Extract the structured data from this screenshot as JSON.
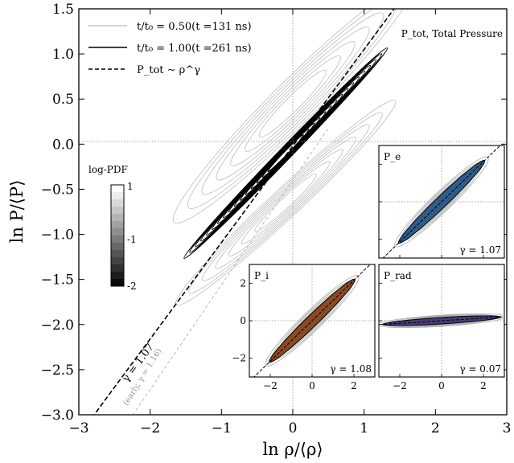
{
  "chart_data": {
    "type": "heatmap",
    "title": "",
    "xlabel": "ln ρ/⟨ρ⟩",
    "ylabel": "ln P/⟨P⟩",
    "xlim": [
      -3,
      3
    ],
    "ylim": [
      -3,
      1.5
    ],
    "xticks": [
      "−3",
      "−2",
      "−1",
      "0",
      "1",
      "2",
      "3"
    ],
    "yticks": [
      "1.5",
      "1.0",
      "0.5",
      "0.0",
      "−0.5",
      "−1.0",
      "−1.5",
      "−2.0",
      "−2.5",
      "−3.0"
    ],
    "panel_label": "P_tot, Total Pressure",
    "legend": [
      {
        "label": "t/t₀ = 0.50(t =131 ns)",
        "style": "solid",
        "color": "#bbbbbb"
      },
      {
        "label": "t/t₀ = 1.00(t =261 ns)",
        "style": "solid",
        "color": "#000000"
      },
      {
        "label": "P_tot ∼ ρ^γ",
        "style": "dashed",
        "color": "#000000"
      }
    ],
    "fit_label": "γ = 1.07",
    "fit_gamma": 1.07,
    "early_label": "(early, γ = 1.16)",
    "early_gamma": 1.16,
    "colorbar": {
      "title": "log-PDF",
      "ticks": [
        "1",
        "-1",
        "-2"
      ],
      "range": [
        -2,
        1
      ]
    },
    "insets": [
      {
        "label": "P_e",
        "gamma_label": "γ = 1.07",
        "gamma": 1.07,
        "color": "#2f5d8a"
      },
      {
        "label": "P_i",
        "gamma_label": "γ = 1.08",
        "gamma": 1.08,
        "color": "#8a4a22"
      },
      {
        "label": "P_rad",
        "gamma_label": "γ = 0.07",
        "gamma": 0.07,
        "color": "#4b3a7a"
      }
    ],
    "inset_xticks": [
      "−2",
      "0",
      "2"
    ],
    "inset_yticks": [
      "2",
      "0",
      "−2"
    ]
  }
}
